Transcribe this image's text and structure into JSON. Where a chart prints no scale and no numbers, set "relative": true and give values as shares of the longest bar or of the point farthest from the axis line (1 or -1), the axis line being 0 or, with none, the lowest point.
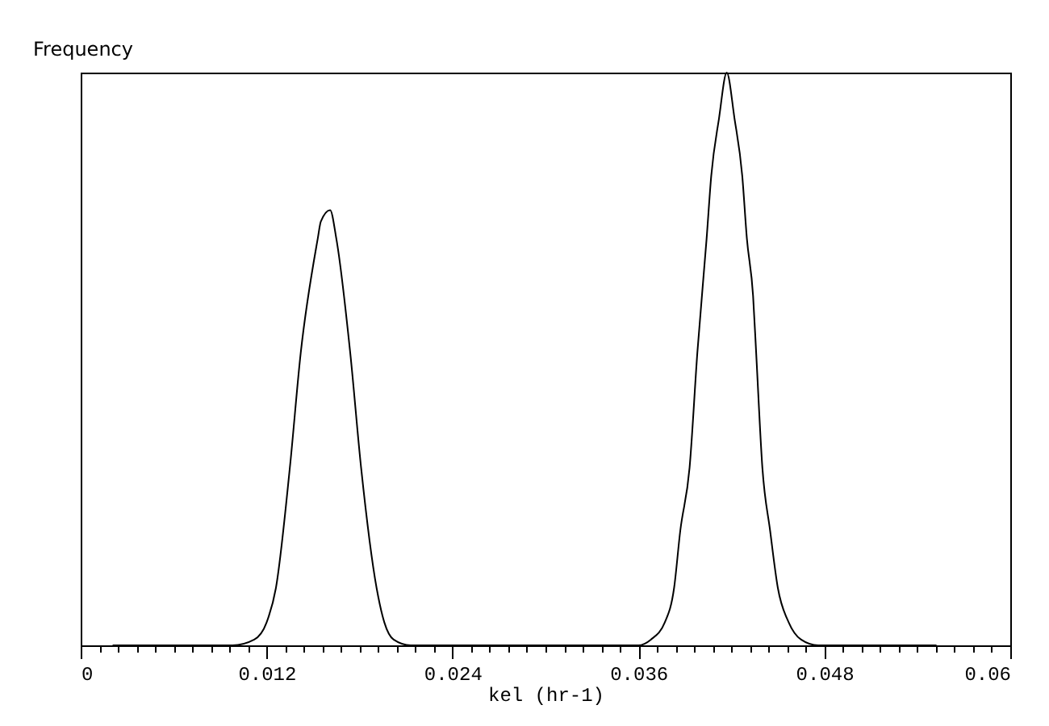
{
  "chart_data": {
    "type": "line",
    "xlabel": "kel (hr-1)",
    "ylabel": "Frequency",
    "relative": true,
    "line_style": "solid",
    "xlim": [
      0,
      0.06
    ],
    "xticks": [
      0,
      {
        "value": 0.0012,
        "label": null
      },
      {
        "value": 0.0024,
        "label": null
      },
      {
        "value": 0.0036,
        "label": null
      },
      {
        "value": 0.0048,
        "label": null
      },
      {
        "value": 0.006,
        "label": null
      },
      {
        "value": 0.0072,
        "label": null
      },
      {
        "value": 0.0084,
        "label": null
      },
      {
        "value": 0.0096,
        "label": null
      },
      {
        "value": 0.0108,
        "label": null
      },
      0.012,
      {
        "value": 0.0132,
        "label": null
      },
      {
        "value": 0.0144,
        "label": null
      },
      {
        "value": 0.0156,
        "label": null
      },
      {
        "value": 0.0168,
        "label": null
      },
      {
        "value": 0.018,
        "label": null
      },
      {
        "value": 0.0192,
        "label": null
      },
      {
        "value": 0.0204,
        "label": null
      },
      {
        "value": 0.0216,
        "label": null
      },
      {
        "value": 0.0228,
        "label": null
      },
      0.024,
      {
        "value": 0.0252,
        "label": null
      },
      {
        "value": 0.0264,
        "label": null
      },
      {
        "value": 0.0276,
        "label": null
      },
      {
        "value": 0.0288,
        "label": null
      },
      {
        "value": 0.03,
        "label": null
      },
      {
        "value": 0.0312,
        "label": null
      },
      {
        "value": 0.0324,
        "label": null
      },
      {
        "value": 0.0336,
        "label": null
      },
      {
        "value": 0.0348,
        "label": null
      },
      0.036,
      {
        "value": 0.0372,
        "label": null
      },
      {
        "value": 0.0384,
        "label": null
      },
      {
        "value": 0.0396,
        "label": null
      },
      {
        "value": 0.0408,
        "label": null
      },
      {
        "value": 0.042,
        "label": null
      },
      {
        "value": 0.0432,
        "label": null
      },
      {
        "value": 0.0444,
        "label": null
      },
      {
        "value": 0.0456,
        "label": null
      },
      {
        "value": 0.0468,
        "label": null
      },
      0.048,
      {
        "value": 0.0492,
        "label": null
      },
      {
        "value": 0.0504,
        "label": null
      },
      {
        "value": 0.0516,
        "label": null
      },
      {
        "value": 0.0528,
        "label": null
      },
      {
        "value": 0.054,
        "label": null
      },
      {
        "value": 0.0552,
        "label": null
      },
      {
        "value": 0.0564,
        "label": null
      },
      {
        "value": 0.0576,
        "label": null
      },
      {
        "value": 0.0588,
        "label": null
      },
      0.06
    ],
    "series": [
      {
        "color": "#000000",
        "x": [
          0.0021,
          0.0098,
          0.0112,
          0.012,
          0.0126,
          0.0135,
          0.0142,
          0.0153,
          0.0155,
          0.0161,
          0.0165,
          0.0174,
          0.0181,
          0.0191,
          0.0196,
          0.0202,
          0.0213,
          0.036,
          0.0368,
          0.0377,
          0.0383,
          0.0387,
          0.0393,
          0.0398,
          0.0404,
          0.0407,
          0.0412,
          0.0417,
          0.0422,
          0.0427,
          0.043,
          0.0434,
          0.0436,
          0.044,
          0.0445,
          0.045,
          0.0457,
          0.0465,
          0.0476,
          0.0552
        ],
        "values": [
          0,
          0,
          0.01,
          0.04,
          0.1,
          0.31,
          0.51,
          0.71,
          0.74,
          0.76,
          0.71,
          0.51,
          0.31,
          0.1,
          0.04,
          0.01,
          0,
          0,
          0.01,
          0.04,
          0.1,
          0.2,
          0.31,
          0.51,
          0.71,
          0.82,
          0.92,
          1,
          0.92,
          0.82,
          0.71,
          0.61,
          0.51,
          0.31,
          0.2,
          0.1,
          0.04,
          0.01,
          0,
          0
        ]
      }
    ]
  }
}
